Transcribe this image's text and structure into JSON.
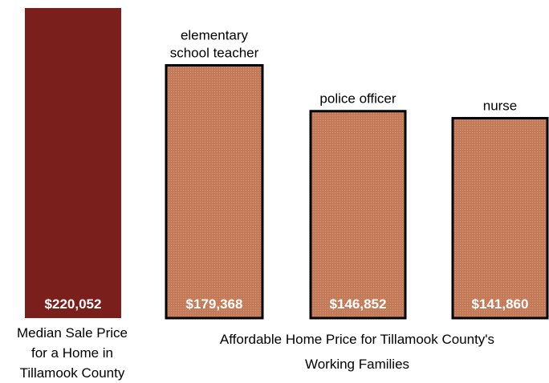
{
  "chart_data": {
    "type": "bar",
    "categories": [
      "Median Sale Price",
      "elementary school teacher",
      "police officer",
      "nurse"
    ],
    "values": [
      220052,
      179368,
      146852,
      141860
    ],
    "value_labels": [
      "$220,052",
      "$179,368",
      "$146,852",
      "$141,860"
    ],
    "top_labels": [
      [],
      [
        "elementary",
        "school teacher"
      ],
      [
        "police officer"
      ],
      [
        "nurse"
      ]
    ],
    "ylim": [
      0,
      220052
    ],
    "grid": false,
    "legend": "none",
    "colors": {
      "median_bar": "#7a1f1b",
      "affordable_bar": "#c27a58",
      "affordable_bar_pattern": "#d99a7a",
      "bar_outline": "#000000"
    }
  },
  "captions": {
    "median_lines": [
      "Median Sale Price",
      "for a Home in",
      "Tillamook County"
    ],
    "affordable_lines": [
      "Affordable Home Price for Tillamook County's",
      "Working Families"
    ]
  }
}
